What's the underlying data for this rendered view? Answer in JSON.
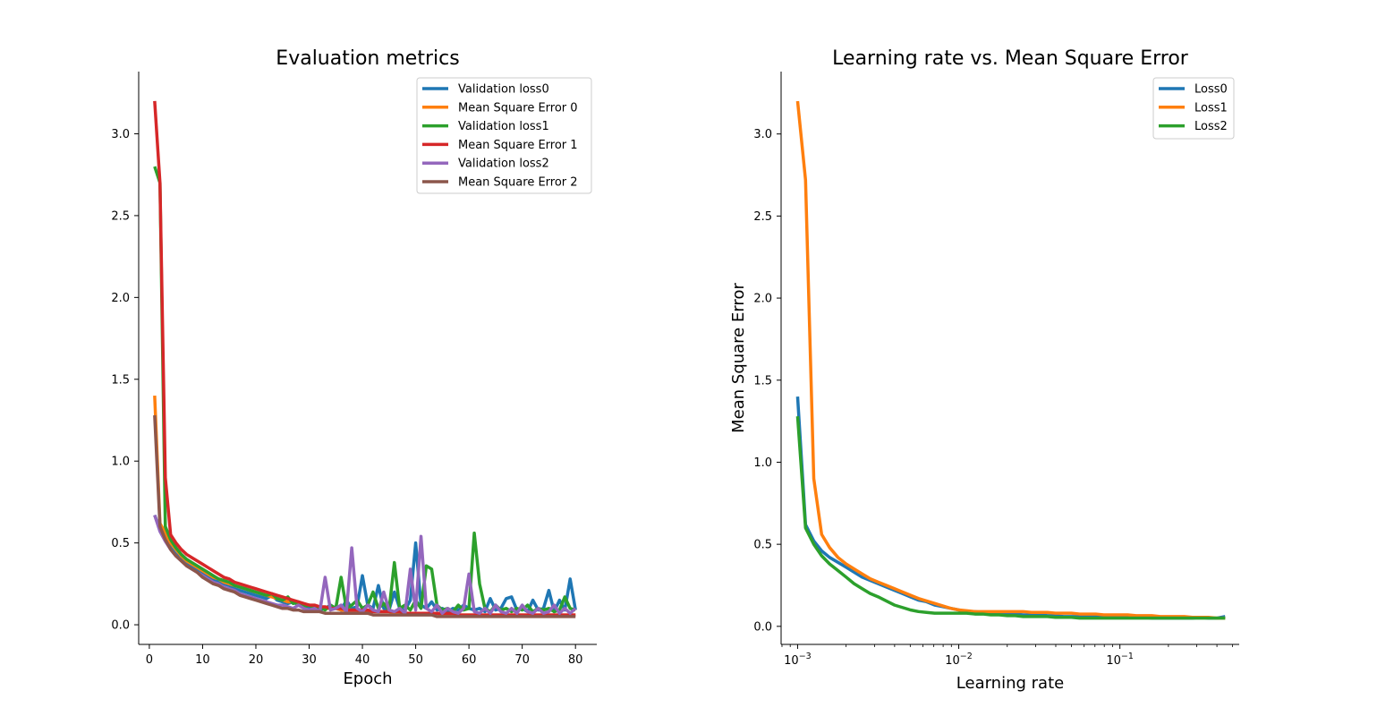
{
  "chart_data": [
    {
      "type": "line",
      "title": "Evaluation metrics",
      "xlabel": "Epoch",
      "ylabel": "",
      "xlim": [
        -2,
        84
      ],
      "ylim": [
        -0.12,
        3.38
      ],
      "xticks": [
        0,
        10,
        20,
        30,
        40,
        50,
        60,
        70,
        80
      ],
      "yticks": [
        0.0,
        0.5,
        1.0,
        1.5,
        2.0,
        2.5,
        3.0
      ],
      "legend": "top-right",
      "grid": false,
      "x": [
        1,
        2,
        3,
        4,
        5,
        6,
        7,
        8,
        9,
        10,
        11,
        12,
        13,
        14,
        15,
        16,
        17,
        18,
        19,
        20,
        21,
        22,
        23,
        24,
        25,
        26,
        27,
        28,
        29,
        30,
        31,
        32,
        33,
        34,
        35,
        36,
        37,
        38,
        39,
        40,
        41,
        42,
        43,
        44,
        45,
        46,
        47,
        48,
        49,
        50,
        51,
        52,
        53,
        54,
        55,
        56,
        57,
        58,
        59,
        60,
        61,
        62,
        63,
        64,
        65,
        66,
        67,
        68,
        69,
        70,
        71,
        72,
        73,
        74,
        75,
        76,
        77,
        78,
        79,
        80
      ],
      "series": [
        {
          "name": "Validation loss0",
          "color": "#1f77b4",
          "values": [
            0.67,
            0.58,
            0.52,
            0.47,
            0.43,
            0.4,
            0.37,
            0.35,
            0.33,
            0.31,
            0.29,
            0.28,
            0.26,
            0.25,
            0.24,
            0.22,
            0.21,
            0.2,
            0.19,
            0.18,
            0.17,
            0.16,
            0.18,
            0.15,
            0.14,
            0.13,
            0.14,
            0.12,
            0.11,
            0.1,
            0.11,
            0.09,
            0.1,
            0.12,
            0.1,
            0.09,
            0.15,
            0.1,
            0.11,
            0.3,
            0.12,
            0.1,
            0.24,
            0.1,
            0.09,
            0.2,
            0.1,
            0.09,
            0.15,
            0.5,
            0.12,
            0.1,
            0.14,
            0.09,
            0.1,
            0.08,
            0.1,
            0.09,
            0.12,
            0.1,
            0.09,
            0.1,
            0.08,
            0.16,
            0.09,
            0.1,
            0.16,
            0.17,
            0.09,
            0.1,
            0.08,
            0.15,
            0.09,
            0.1,
            0.21,
            0.08,
            0.15,
            0.09,
            0.28,
            0.09
          ]
        },
        {
          "name": "Mean Square Error 0",
          "color": "#ff7f0e",
          "values": [
            1.4,
            0.62,
            0.56,
            0.5,
            0.46,
            0.42,
            0.39,
            0.37,
            0.35,
            0.33,
            0.31,
            0.29,
            0.28,
            0.26,
            0.25,
            0.24,
            0.23,
            0.22,
            0.21,
            0.2,
            0.19,
            0.18,
            0.17,
            0.16,
            0.15,
            0.14,
            0.14,
            0.13,
            0.12,
            0.12,
            0.11,
            0.11,
            0.1,
            0.1,
            0.1,
            0.09,
            0.09,
            0.09,
            0.09,
            0.08,
            0.08,
            0.08,
            0.08,
            0.08,
            0.08,
            0.07,
            0.07,
            0.07,
            0.07,
            0.07,
            0.07,
            0.07,
            0.07,
            0.07,
            0.06,
            0.06,
            0.06,
            0.06,
            0.06,
            0.06,
            0.06,
            0.06,
            0.06,
            0.06,
            0.06,
            0.06,
            0.06,
            0.06,
            0.06,
            0.06,
            0.06,
            0.06,
            0.06,
            0.06,
            0.06,
            0.06,
            0.06,
            0.06,
            0.06,
            0.06
          ]
        },
        {
          "name": "Validation loss1",
          "color": "#2ca02c",
          "values": [
            2.8,
            2.7,
            0.6,
            0.52,
            0.47,
            0.43,
            0.4,
            0.38,
            0.36,
            0.34,
            0.32,
            0.3,
            0.28,
            0.27,
            0.26,
            0.24,
            0.23,
            0.22,
            0.21,
            0.2,
            0.19,
            0.18,
            0.19,
            0.16,
            0.15,
            0.17,
            0.13,
            0.14,
            0.11,
            0.12,
            0.1,
            0.11,
            0.09,
            0.12,
            0.1,
            0.29,
            0.1,
            0.12,
            0.15,
            0.1,
            0.12,
            0.2,
            0.1,
            0.13,
            0.09,
            0.38,
            0.1,
            0.12,
            0.09,
            0.15,
            0.1,
            0.36,
            0.34,
            0.12,
            0.09,
            0.1,
            0.08,
            0.12,
            0.09,
            0.1,
            0.56,
            0.25,
            0.1,
            0.08,
            0.12,
            0.09,
            0.1,
            0.08,
            0.1,
            0.09,
            0.12,
            0.08,
            0.1,
            0.09,
            0.1,
            0.08,
            0.09,
            0.17,
            0.1,
            0.09
          ]
        },
        {
          "name": "Mean Square Error 1",
          "color": "#d62728",
          "values": [
            3.2,
            2.7,
            0.9,
            0.55,
            0.5,
            0.46,
            0.43,
            0.41,
            0.39,
            0.37,
            0.35,
            0.33,
            0.31,
            0.29,
            0.28,
            0.26,
            0.25,
            0.24,
            0.23,
            0.22,
            0.21,
            0.2,
            0.19,
            0.18,
            0.17,
            0.16,
            0.15,
            0.14,
            0.13,
            0.12,
            0.12,
            0.11,
            0.11,
            0.1,
            0.1,
            0.1,
            0.09,
            0.09,
            0.09,
            0.09,
            0.09,
            0.08,
            0.08,
            0.08,
            0.08,
            0.08,
            0.08,
            0.07,
            0.07,
            0.07,
            0.07,
            0.07,
            0.07,
            0.07,
            0.07,
            0.07,
            0.07,
            0.06,
            0.06,
            0.06,
            0.06,
            0.06,
            0.06,
            0.06,
            0.06,
            0.06,
            0.06,
            0.06,
            0.06,
            0.06,
            0.06,
            0.06,
            0.06,
            0.06,
            0.06,
            0.06,
            0.06,
            0.06,
            0.06,
            0.06
          ]
        },
        {
          "name": "Validation loss2",
          "color": "#9467bd",
          "values": [
            0.67,
            0.57,
            0.51,
            0.46,
            0.42,
            0.39,
            0.36,
            0.34,
            0.32,
            0.3,
            0.28,
            0.26,
            0.25,
            0.23,
            0.22,
            0.21,
            0.19,
            0.18,
            0.17,
            0.16,
            0.15,
            0.14,
            0.13,
            0.12,
            0.12,
            0.11,
            0.1,
            0.12,
            0.1,
            0.09,
            0.1,
            0.08,
            0.29,
            0.09,
            0.1,
            0.12,
            0.08,
            0.47,
            0.1,
            0.08,
            0.12,
            0.09,
            0.08,
            0.2,
            0.09,
            0.08,
            0.1,
            0.07,
            0.34,
            0.09,
            0.54,
            0.1,
            0.08,
            0.12,
            0.07,
            0.1,
            0.08,
            0.07,
            0.1,
            0.31,
            0.08,
            0.07,
            0.1,
            0.07,
            0.12,
            0.08,
            0.07,
            0.1,
            0.07,
            0.12,
            0.08,
            0.07,
            0.1,
            0.07,
            0.08,
            0.12,
            0.07,
            0.1,
            0.07,
            0.1
          ]
        },
        {
          "name": "Mean Square Error 2",
          "color": "#8c564b",
          "values": [
            1.28,
            0.6,
            0.52,
            0.46,
            0.42,
            0.39,
            0.36,
            0.34,
            0.32,
            0.29,
            0.27,
            0.25,
            0.24,
            0.22,
            0.21,
            0.2,
            0.18,
            0.17,
            0.16,
            0.15,
            0.14,
            0.13,
            0.12,
            0.11,
            0.1,
            0.1,
            0.09,
            0.09,
            0.08,
            0.08,
            0.08,
            0.08,
            0.07,
            0.07,
            0.07,
            0.07,
            0.07,
            0.07,
            0.07,
            0.07,
            0.07,
            0.06,
            0.06,
            0.06,
            0.06,
            0.06,
            0.06,
            0.06,
            0.06,
            0.06,
            0.06,
            0.06,
            0.06,
            0.05,
            0.05,
            0.05,
            0.05,
            0.05,
            0.05,
            0.05,
            0.05,
            0.05,
            0.05,
            0.05,
            0.05,
            0.05,
            0.05,
            0.05,
            0.05,
            0.05,
            0.05,
            0.05,
            0.05,
            0.05,
            0.05,
            0.05,
            0.05,
            0.05,
            0.05,
            0.05
          ]
        }
      ]
    },
    {
      "type": "line",
      "title": "Learning rate vs. Mean Square Error",
      "xlabel": "Learning rate",
      "ylabel": "Mean Square Error",
      "xscale": "log",
      "xlim": [
        0.00079,
        0.55
      ],
      "ylim": [
        -0.11,
        3.38
      ],
      "xticks": [
        0.001,
        0.01,
        0.1
      ],
      "xtick_labels": [
        {
          "base": "10",
          "exp": "−3"
        },
        {
          "base": "10",
          "exp": "−2"
        },
        {
          "base": "10",
          "exp": "−1"
        }
      ],
      "yticks": [
        0.0,
        0.5,
        1.0,
        1.5,
        2.0,
        2.5,
        3.0
      ],
      "legend": "top-right",
      "grid": false,
      "x": [
        0.001,
        0.00112,
        0.00126,
        0.00141,
        0.00158,
        0.00178,
        0.002,
        0.00224,
        0.00251,
        0.00282,
        0.00316,
        0.00355,
        0.00398,
        0.00447,
        0.00501,
        0.00562,
        0.00631,
        0.00708,
        0.00794,
        0.00891,
        0.01,
        0.0112,
        0.0126,
        0.0141,
        0.0158,
        0.0178,
        0.02,
        0.0224,
        0.0251,
        0.0282,
        0.0316,
        0.0355,
        0.0398,
        0.0447,
        0.0501,
        0.0562,
        0.0631,
        0.0708,
        0.0794,
        0.0891,
        0.1,
        0.112,
        0.126,
        0.141,
        0.158,
        0.178,
        0.2,
        0.224,
        0.251,
        0.282,
        0.316,
        0.355,
        0.398,
        0.45
      ],
      "series": [
        {
          "name": "Loss0",
          "color": "#1f77b4",
          "values": [
            1.4,
            0.62,
            0.52,
            0.46,
            0.42,
            0.39,
            0.36,
            0.33,
            0.3,
            0.28,
            0.26,
            0.24,
            0.22,
            0.2,
            0.18,
            0.16,
            0.15,
            0.13,
            0.12,
            0.11,
            0.1,
            0.09,
            0.09,
            0.085,
            0.08,
            0.08,
            0.075,
            0.075,
            0.07,
            0.07,
            0.07,
            0.065,
            0.065,
            0.06,
            0.06,
            0.06,
            0.06,
            0.06,
            0.055,
            0.055,
            0.055,
            0.055,
            0.055,
            0.055,
            0.05,
            0.05,
            0.05,
            0.05,
            0.05,
            0.05,
            0.055,
            0.05,
            0.05,
            0.06
          ]
        },
        {
          "name": "Loss1",
          "color": "#ff7f0e",
          "values": [
            3.2,
            2.72,
            0.9,
            0.56,
            0.48,
            0.42,
            0.38,
            0.35,
            0.32,
            0.29,
            0.27,
            0.25,
            0.23,
            0.21,
            0.19,
            0.17,
            0.155,
            0.14,
            0.125,
            0.11,
            0.1,
            0.095,
            0.09,
            0.09,
            0.09,
            0.09,
            0.09,
            0.09,
            0.09,
            0.085,
            0.085,
            0.085,
            0.08,
            0.08,
            0.08,
            0.075,
            0.075,
            0.075,
            0.07,
            0.07,
            0.07,
            0.07,
            0.065,
            0.065,
            0.065,
            0.06,
            0.06,
            0.06,
            0.06,
            0.055,
            0.055,
            0.055,
            0.05,
            0.05
          ]
        },
        {
          "name": "Loss2",
          "color": "#2ca02c",
          "values": [
            1.28,
            0.6,
            0.5,
            0.43,
            0.38,
            0.34,
            0.3,
            0.26,
            0.23,
            0.2,
            0.18,
            0.155,
            0.13,
            0.115,
            0.1,
            0.09,
            0.085,
            0.08,
            0.08,
            0.08,
            0.08,
            0.08,
            0.075,
            0.075,
            0.07,
            0.07,
            0.065,
            0.065,
            0.06,
            0.06,
            0.06,
            0.06,
            0.055,
            0.055,
            0.055,
            0.05,
            0.05,
            0.05,
            0.05,
            0.05,
            0.05,
            0.05,
            0.05,
            0.05,
            0.05,
            0.05,
            0.05,
            0.05,
            0.05,
            0.05,
            0.05,
            0.05,
            0.05,
            0.05
          ]
        }
      ]
    }
  ]
}
